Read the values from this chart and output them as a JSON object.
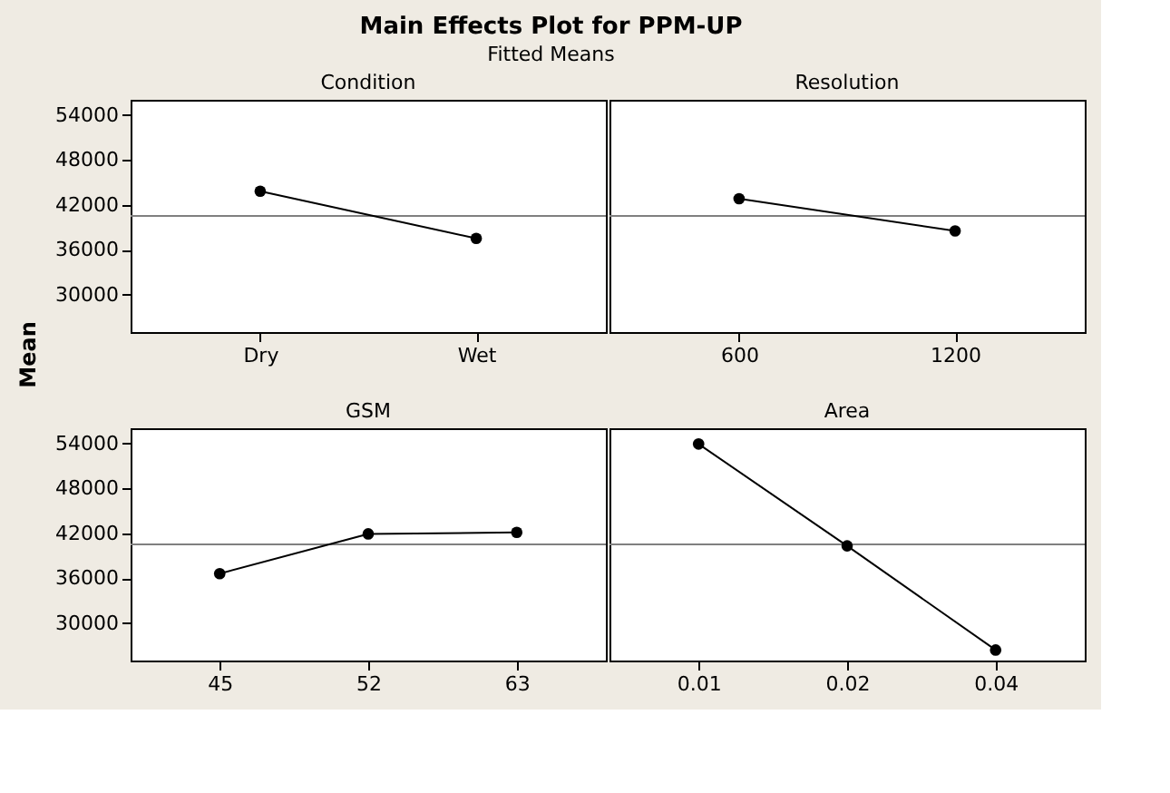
{
  "chart_data": [
    {
      "type": "line",
      "title": "Condition",
      "annotations": [
        "Main Effects Plot for PPM-UP",
        "Fitted Means"
      ],
      "ylabel": "Mean",
      "categories": [
        "Dry",
        "Wet"
      ],
      "values": [
        43800,
        37500
      ],
      "color": "#000000",
      "marker": "circle",
      "ylim": [
        25000,
        56000
      ],
      "yticks": [
        30000,
        36000,
        42000,
        48000,
        54000
      ],
      "ref_lines": [
        {
          "axis": "y",
          "value": 40500,
          "color": "#808080"
        }
      ]
    },
    {
      "type": "line",
      "title": "Resolution",
      "categories": [
        "600",
        "1200"
      ],
      "values": [
        42800,
        38500
      ],
      "color": "#000000",
      "marker": "circle",
      "ylim": [
        25000,
        56000
      ],
      "tick_labels": "x",
      "ref_lines": [
        {
          "axis": "y",
          "value": 40500,
          "color": "#808080"
        }
      ]
    },
    {
      "type": "line",
      "title": "GSM",
      "categories": [
        "45",
        "52",
        "63"
      ],
      "values": [
        36600,
        41900,
        42100
      ],
      "color": "#000000",
      "marker": "circle",
      "ylim": [
        25000,
        56000
      ],
      "yticks": [
        30000,
        36000,
        42000,
        48000,
        54000
      ],
      "ref_lines": [
        {
          "axis": "y",
          "value": 40500,
          "color": "#808080"
        }
      ]
    },
    {
      "type": "line",
      "title": "Area",
      "categories": [
        "0.01",
        "0.02",
        "0.04"
      ],
      "values": [
        53900,
        40300,
        26400
      ],
      "color": "#000000",
      "marker": "circle",
      "ylim": [
        25000,
        56000
      ],
      "tick_labels": "x",
      "ref_lines": [
        {
          "axis": "y",
          "value": 40500,
          "color": "#808080"
        }
      ]
    }
  ]
}
